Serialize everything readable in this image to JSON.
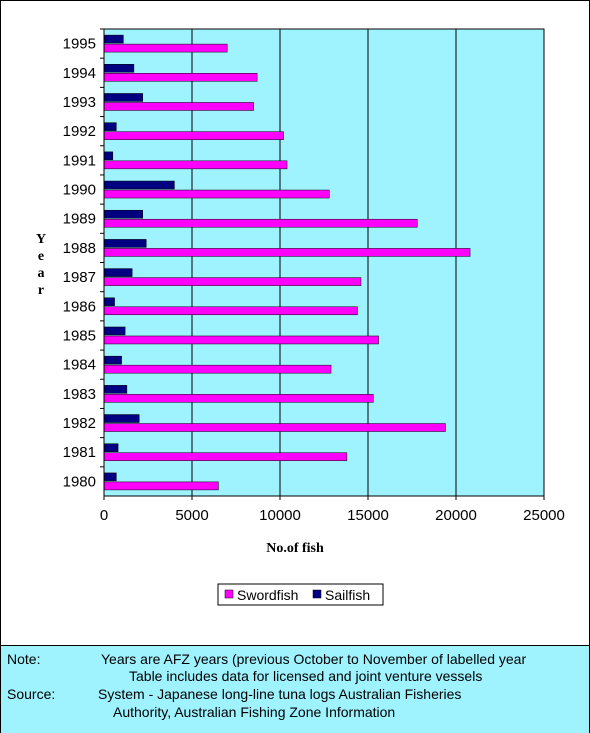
{
  "colors": {
    "plot_background": "#9ff3ff",
    "note_background": "#9ff3ff",
    "swordfish": "#ff00ff",
    "sailfish": "#000080"
  },
  "chart_data": {
    "type": "bar",
    "orientation": "horizontal",
    "xlabel": "No.of fish",
    "ylabel": "Year",
    "xlim": [
      0,
      25000
    ],
    "x_ticks": [
      "0",
      "5000",
      "10000",
      "15000",
      "20000",
      "25000"
    ],
    "grid": "vertical gridlines",
    "legend_position": "bottom",
    "categories": [
      "1980",
      "1981",
      "1982",
      "1983",
      "1984",
      "1985",
      "1986",
      "1987",
      "1988",
      "1989",
      "1990",
      "1991",
      "1992",
      "1993",
      "1994",
      "1995"
    ],
    "series": [
      {
        "name": "Swordfish",
        "color": "#ff00ff",
        "values": [
          6500,
          13800,
          19400,
          15300,
          12900,
          15600,
          14400,
          14600,
          20800,
          17800,
          12800,
          10400,
          10200,
          8500,
          8700,
          7000
        ]
      },
      {
        "name": "Sailfish",
        "color": "#000080",
        "values": [
          700,
          800,
          2000,
          1300,
          1000,
          1200,
          600,
          1600,
          2400,
          2200,
          4000,
          500,
          700,
          2200,
          1700,
          1100
        ]
      }
    ]
  },
  "notes": {
    "note_label": "Note:",
    "note_text_1": "Years are AFZ years (previous October to November of labelled year",
    "note_text_2": "Table includes data for licensed and joint venture vessels",
    "source_label": "Source:",
    "source_text_1": "System - Japanese long-line tuna logs Australian Fisheries",
    "source_text_2": "Authority, Australian Fishing Zone Information"
  }
}
